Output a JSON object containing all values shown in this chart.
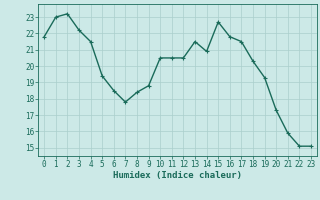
{
  "x": [
    0,
    1,
    2,
    3,
    4,
    5,
    6,
    7,
    8,
    9,
    10,
    11,
    12,
    13,
    14,
    15,
    16,
    17,
    18,
    19,
    20,
    21,
    22,
    23
  ],
  "y": [
    21.8,
    23.0,
    23.2,
    22.2,
    21.5,
    19.4,
    18.5,
    17.8,
    18.4,
    18.8,
    20.5,
    20.5,
    20.5,
    21.5,
    20.9,
    22.7,
    21.8,
    21.5,
    20.3,
    19.3,
    17.3,
    15.9,
    15.1,
    15.1
  ],
  "line_color": "#1a6b5a",
  "marker": "+",
  "marker_size": 3,
  "bg_color": "#cce9e7",
  "grid_color": "#aacfcc",
  "xlabel": "Humidex (Indice chaleur)",
  "xlabel_fontsize": 6.5,
  "ylim": [
    14.5,
    23.8
  ],
  "xlim": [
    -0.5,
    23.5
  ],
  "yticks": [
    15,
    16,
    17,
    18,
    19,
    20,
    21,
    22,
    23
  ],
  "xticks": [
    0,
    1,
    2,
    3,
    4,
    5,
    6,
    7,
    8,
    9,
    10,
    11,
    12,
    13,
    14,
    15,
    16,
    17,
    18,
    19,
    20,
    21,
    22,
    23
  ],
  "tick_fontsize": 5.5,
  "line_width": 1.0
}
